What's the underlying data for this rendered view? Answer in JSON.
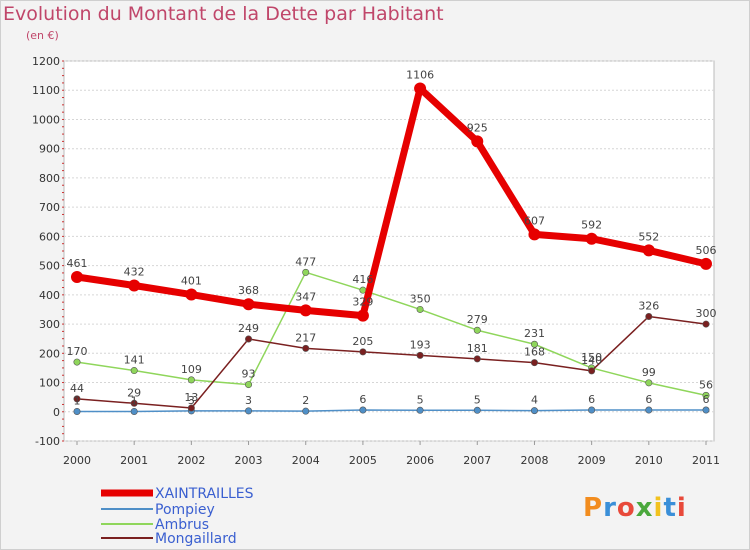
{
  "title": "Evolution du Montant de la Dette par Habitant",
  "unit": "(en €)",
  "logo": {
    "text": "Proxiti"
  },
  "chart_data": {
    "type": "line",
    "title": "Evolution du Montant de la Dette par Habitant",
    "ylabel": "(en €)",
    "xlabel": "",
    "ylim": [
      -100,
      1200
    ],
    "yticks": [
      -100,
      0,
      100,
      200,
      300,
      400,
      500,
      600,
      700,
      800,
      900,
      1000,
      1100,
      1200
    ],
    "grid": "horizontal",
    "legend": "bottom-left",
    "x": [
      "2000",
      "2001",
      "2002",
      "2003",
      "2004",
      "2005",
      "2006",
      "2007",
      "2008",
      "2009",
      "2010",
      "2011"
    ],
    "series": [
      {
        "name": "XAINTRAILLES",
        "color": "#e60000",
        "values": [
          461,
          432,
          401,
          368,
          347,
          329,
          1106,
          925,
          607,
          592,
          552,
          506
        ]
      },
      {
        "name": "Pompiey",
        "color": "#4f8fc7",
        "values": [
          1,
          1,
          3,
          3,
          2,
          6,
          5,
          5,
          4,
          6,
          6,
          6
        ]
      },
      {
        "name": "Ambrus",
        "color": "#8fd65b",
        "values": [
          170,
          141,
          109,
          93,
          477,
          416,
          350,
          279,
          231,
          150,
          99,
          56
        ]
      },
      {
        "name": "Mongaillard",
        "color": "#7a2020",
        "values": [
          44,
          29,
          13,
          249,
          217,
          205,
          193,
          181,
          168,
          140,
          326,
          300
        ]
      }
    ]
  }
}
